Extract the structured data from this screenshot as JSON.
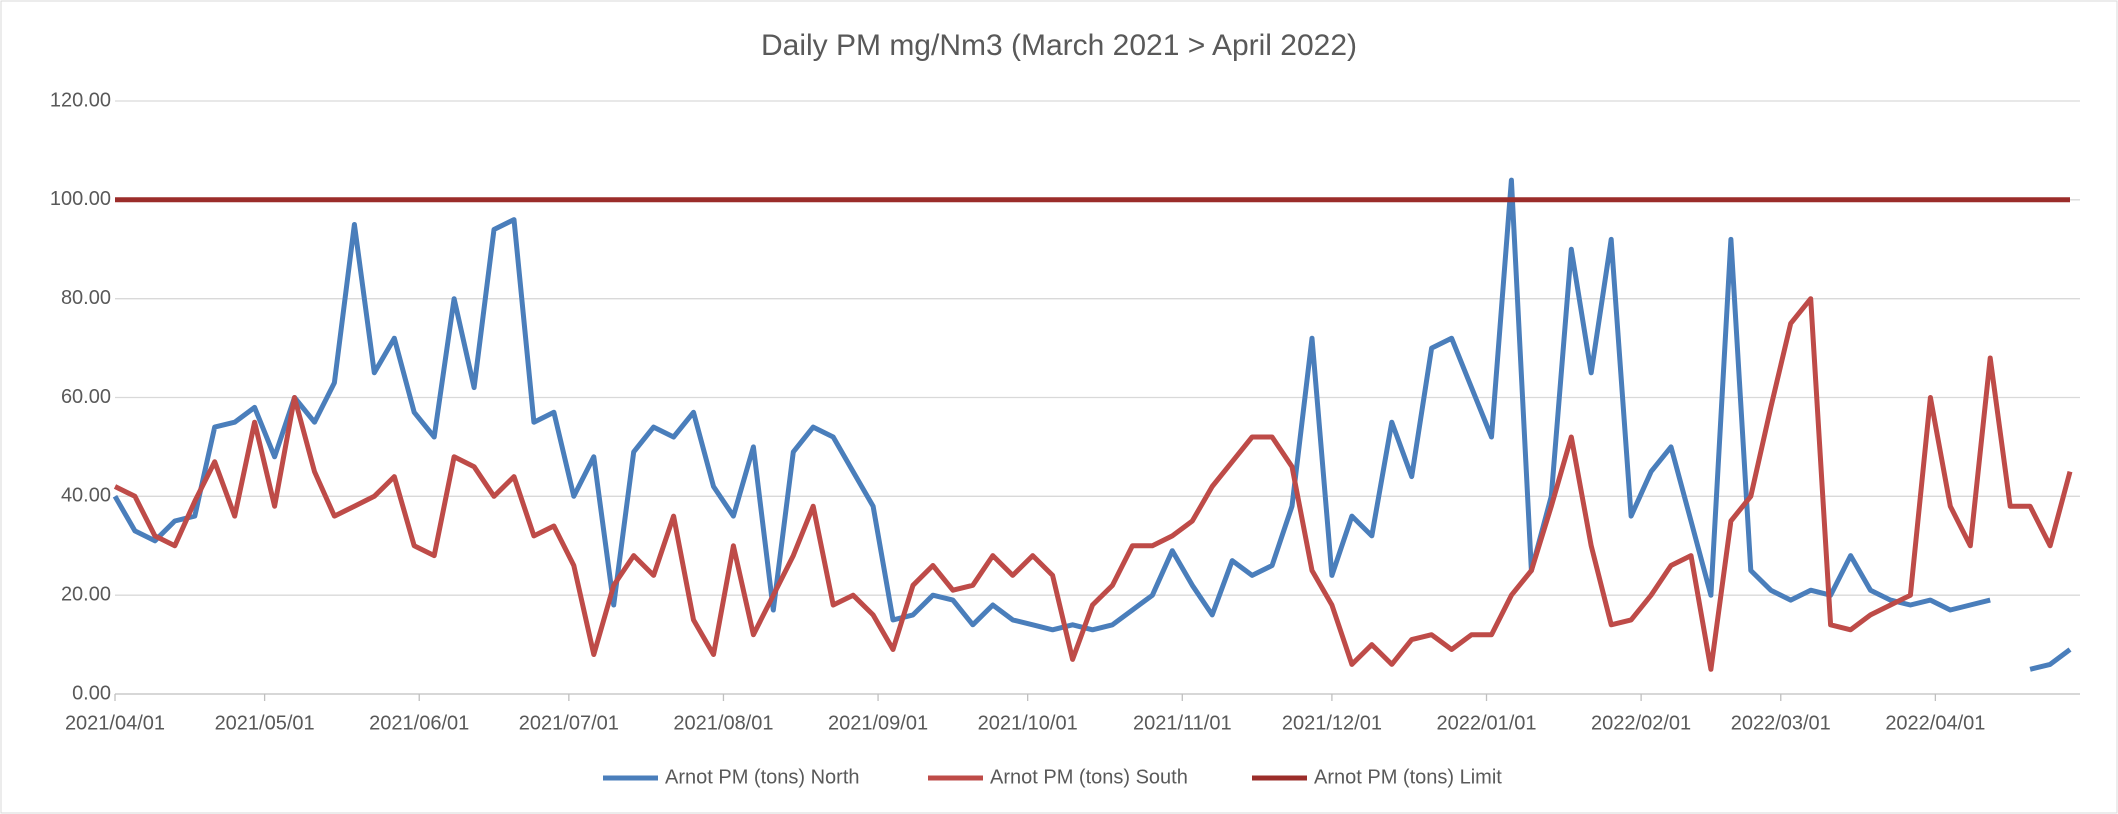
{
  "chart_data": {
    "type": "line",
    "title": "Daily PM mg/Nm3  (March 2021 > April 2022)",
    "x": [
      "2021/04/01",
      "2021/04/05",
      "2021/04/09",
      "2021/04/13",
      "2021/04/17",
      "2021/04/21",
      "2021/04/25",
      "2021/04/29",
      "2021/05/03",
      "2021/05/07",
      "2021/05/11",
      "2021/05/15",
      "2021/05/19",
      "2021/05/23",
      "2021/05/27",
      "2021/05/31",
      "2021/06/04",
      "2021/06/08",
      "2021/06/12",
      "2021/06/16",
      "2021/06/20",
      "2021/06/24",
      "2021/06/28",
      "2021/07/02",
      "2021/07/06",
      "2021/07/10",
      "2021/07/14",
      "2021/07/18",
      "2021/07/22",
      "2021/07/26",
      "2021/07/30",
      "2021/08/03",
      "2021/08/07",
      "2021/08/11",
      "2021/08/15",
      "2021/08/19",
      "2021/08/23",
      "2021/08/27",
      "2021/08/31",
      "2021/09/04",
      "2021/09/08",
      "2021/09/12",
      "2021/09/16",
      "2021/09/20",
      "2021/09/24",
      "2021/09/28",
      "2021/10/02",
      "2021/10/06",
      "2021/10/10",
      "2021/10/14",
      "2021/10/18",
      "2021/10/22",
      "2021/10/26",
      "2021/10/30",
      "2021/11/03",
      "2021/11/07",
      "2021/11/11",
      "2021/11/15",
      "2021/11/19",
      "2021/11/23",
      "2021/11/27",
      "2021/12/01",
      "2021/12/05",
      "2021/12/09",
      "2021/12/13",
      "2021/12/17",
      "2021/12/21",
      "2021/12/25",
      "2021/12/29",
      "2022/01/02",
      "2022/01/06",
      "2022/01/10",
      "2022/01/14",
      "2022/01/18",
      "2022/01/22",
      "2022/01/26",
      "2022/01/30",
      "2022/02/03",
      "2022/02/07",
      "2022/02/11",
      "2022/02/15",
      "2022/02/19",
      "2022/02/23",
      "2022/02/27",
      "2022/03/03",
      "2022/03/07",
      "2022/03/11",
      "2022/03/15",
      "2022/03/19",
      "2022/03/23",
      "2022/03/27",
      "2022/03/31",
      "2022/04/04",
      "2022/04/08",
      "2022/04/12",
      "2022/04/16",
      "2022/04/20",
      "2022/04/24",
      "2022/04/28"
    ],
    "series": [
      {
        "name": "Arnot PM (tons) North",
        "color": "#4a7ebb",
        "values": [
          40,
          33,
          31,
          35,
          36,
          54,
          55,
          58,
          48,
          60,
          55,
          63,
          95,
          65,
          72,
          57,
          52,
          80,
          62,
          94,
          96,
          55,
          57,
          40,
          48,
          18,
          49,
          54,
          52,
          57,
          42,
          36,
          50,
          17,
          49,
          54,
          52,
          45,
          38,
          15,
          16,
          20,
          19,
          14,
          18,
          15,
          14,
          13,
          14,
          13,
          14,
          17,
          20,
          29,
          22,
          16,
          27,
          24,
          26,
          38,
          72,
          24,
          36,
          32,
          55,
          44,
          70,
          72,
          62,
          52,
          104,
          25,
          40,
          90,
          65,
          92,
          36,
          45,
          50,
          35,
          20,
          92,
          25,
          21,
          19,
          21,
          20,
          28,
          21,
          19,
          18,
          19,
          17,
          18,
          19,
          null,
          5,
          6,
          9
        ]
      },
      {
        "name": "Arnot PM (tons) South",
        "color": "#be4b48",
        "values": [
          42,
          40,
          32,
          30,
          39,
          47,
          36,
          55,
          38,
          60,
          45,
          36,
          38,
          40,
          44,
          30,
          28,
          48,
          46,
          40,
          44,
          32,
          34,
          26,
          8,
          22,
          28,
          24,
          36,
          15,
          8,
          30,
          12,
          20,
          28,
          38,
          18,
          20,
          16,
          9,
          22,
          26,
          21,
          22,
          28,
          24,
          28,
          24,
          7,
          18,
          22,
          30,
          30,
          32,
          35,
          42,
          47,
          52,
          52,
          46,
          25,
          18,
          6,
          10,
          6,
          11,
          12,
          9,
          12,
          12,
          20,
          25,
          38,
          52,
          30,
          14,
          15,
          20,
          26,
          28,
          5,
          35,
          40,
          58,
          75,
          80,
          14,
          13,
          16,
          18,
          20,
          60,
          38,
          30,
          68,
          38,
          38,
          30,
          45
        ]
      },
      {
        "name": "Arnot PM (tons) Limit",
        "color": "#9b2d2a",
        "values": [
          100,
          100,
          100,
          100,
          100,
          100,
          100,
          100,
          100,
          100,
          100,
          100,
          100,
          100,
          100,
          100,
          100,
          100,
          100,
          100,
          100,
          100,
          100,
          100,
          100,
          100,
          100,
          100,
          100,
          100,
          100,
          100,
          100,
          100,
          100,
          100,
          100,
          100,
          100,
          100,
          100,
          100,
          100,
          100,
          100,
          100,
          100,
          100,
          100,
          100,
          100,
          100,
          100,
          100,
          100,
          100,
          100,
          100,
          100,
          100,
          100,
          100,
          100,
          100,
          100,
          100,
          100,
          100,
          100,
          100,
          100,
          100,
          100,
          100,
          100,
          100,
          100,
          100,
          100,
          100,
          100,
          100,
          100,
          100,
          100,
          100,
          100,
          100,
          100,
          100,
          100,
          100,
          100,
          100,
          100,
          100,
          100,
          100,
          100
        ]
      }
    ],
    "xlim": [
      "2021/04/01",
      "2022/04/30"
    ],
    "xticks": [
      "2021/04/01",
      "2021/05/01",
      "2021/06/01",
      "2021/07/01",
      "2021/08/01",
      "2021/09/01",
      "2021/10/01",
      "2021/11/01",
      "2021/12/01",
      "2022/01/01",
      "2022/02/01",
      "2022/03/01",
      "2022/04/01"
    ],
    "ylim": [
      0,
      120
    ],
    "yticks": [
      {
        "value": 0,
        "label": "0.00"
      },
      {
        "value": 20,
        "label": "20.00"
      },
      {
        "value": 40,
        "label": "40.00"
      },
      {
        "value": 60,
        "label": "60.00"
      },
      {
        "value": 80,
        "label": "80.00"
      },
      {
        "value": 100,
        "label": "100.00"
      },
      {
        "value": 120,
        "label": "120.00"
      }
    ],
    "grid": true,
    "legend": "bottom"
  }
}
